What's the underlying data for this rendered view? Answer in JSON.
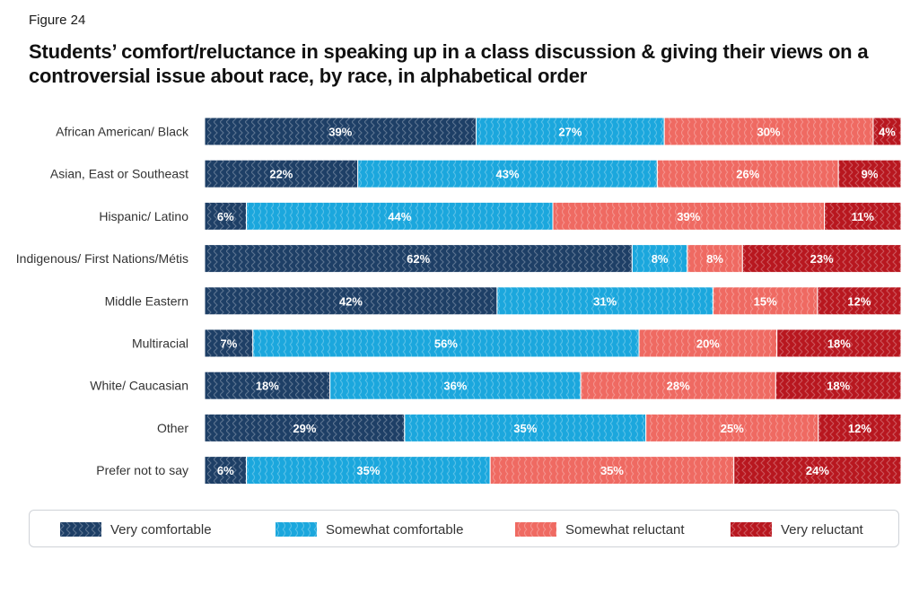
{
  "figure_label": "Figure 24",
  "title": "Students’ comfort/reluctance in speaking up in a class discussion & giving their views on a controversial issue about race, by race, in alphabetical order",
  "colors": {
    "very_comfortable": "#1e3f66",
    "somewhat_comfortable": "#1ba7dd",
    "somewhat_reluctant": "#ef6a62",
    "very_reluctant": "#b8171f"
  },
  "chart_data": {
    "type": "bar",
    "orientation": "horizontal",
    "stacked": true,
    "value_suffix": "%",
    "categories": [
      "African American/ Black",
      "Asian, East or Southeast",
      "Hispanic/ Latino",
      "Indigenous/ First Nations/Métis",
      "Middle Eastern",
      "Multiracial",
      "White/ Caucasian",
      "Other",
      "Prefer not to say"
    ],
    "series": [
      {
        "name": "Very comfortable",
        "values": [
          39,
          22,
          6,
          62,
          42,
          7,
          18,
          29,
          6
        ]
      },
      {
        "name": "Somewhat comfortable",
        "values": [
          27,
          43,
          44,
          8,
          31,
          56,
          36,
          35,
          35
        ]
      },
      {
        "name": "Somewhat reluctant",
        "values": [
          30,
          26,
          39,
          8,
          15,
          20,
          28,
          25,
          35
        ]
      },
      {
        "name": "Very reluctant",
        "values": [
          4,
          9,
          11,
          23,
          12,
          18,
          18,
          12,
          24
        ]
      }
    ],
    "legend_position": "bottom",
    "grid": false
  }
}
